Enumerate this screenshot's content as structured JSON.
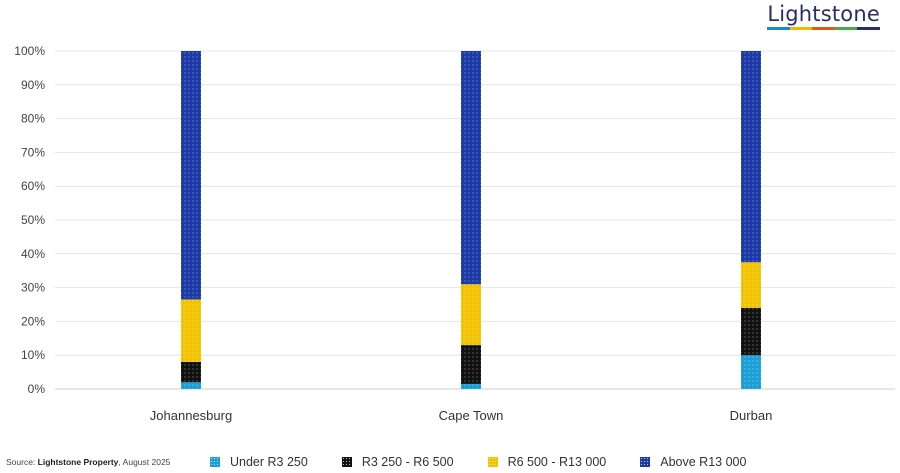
{
  "brand": {
    "logo_text": "Lightstone",
    "logo_colors": [
      "#1a8cc7",
      "#f2b705",
      "#e2551c",
      "#4aa84a",
      "#2b2b6b"
    ]
  },
  "source": {
    "prefix": "Source: ",
    "name": "Lightstone Property",
    "suffix": ", August 2025"
  },
  "chart_data": {
    "type": "bar",
    "stacked": true,
    "categories": [
      "Johannesburg",
      "Cape Town",
      "Durban"
    ],
    "series": [
      {
        "name": "Under R3 250",
        "color": "#1a9fd6",
        "values": [
          2,
          1.5,
          10
        ]
      },
      {
        "name": "R3 250 - R6 500",
        "color": "#111111",
        "values": [
          6,
          11.5,
          14
        ]
      },
      {
        "name": "R6 500 - R13 000",
        "color": "#f2c300",
        "values": [
          18.5,
          18,
          13.5
        ]
      },
      {
        "name": "Above R13 000",
        "color": "#1b3aa8",
        "values": [
          73.5,
          69,
          62.5
        ]
      }
    ],
    "ylim": [
      0,
      100
    ],
    "yticks": [
      "0%",
      "10%",
      "20%",
      "30%",
      "40%",
      "50%",
      "60%",
      "70%",
      "80%",
      "90%",
      "100%"
    ],
    "grid": true,
    "legend_position": "bottom"
  }
}
